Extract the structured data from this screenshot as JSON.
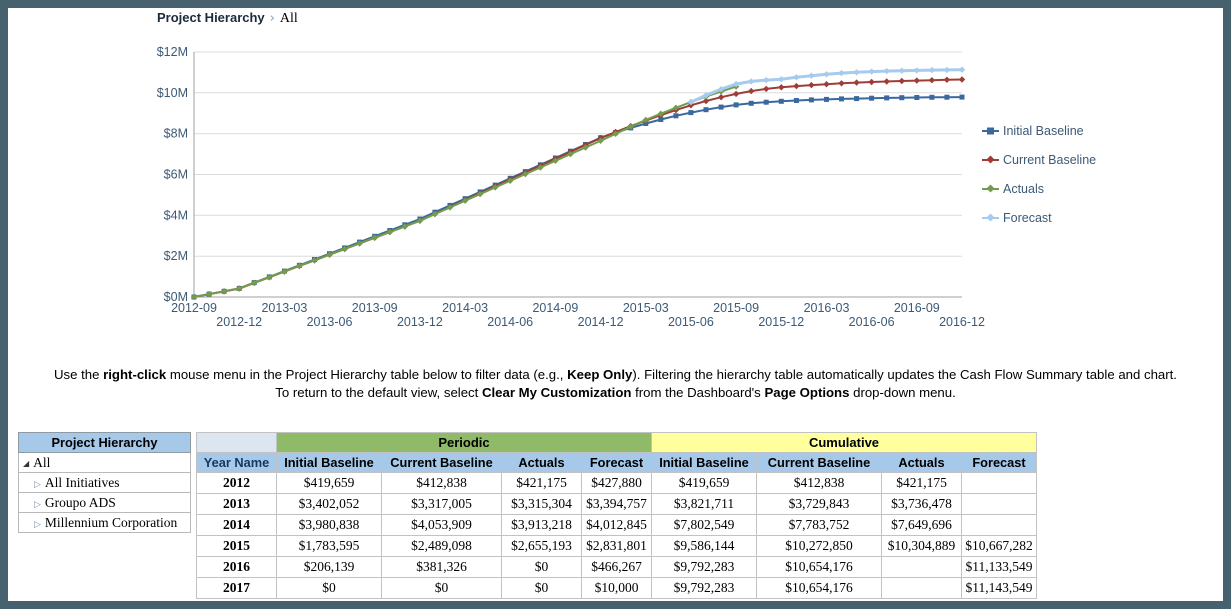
{
  "frame": {
    "border_color": "#48616f"
  },
  "breadcrumb": {
    "title": "Project Hierarchy",
    "separator": "›",
    "current": "All"
  },
  "chart_data": {
    "type": "line",
    "title": "",
    "xlabel": "",
    "ylabel": "",
    "ylim": [
      0,
      12000000
    ],
    "grid": "horizontal",
    "legend_position": "right",
    "ytick_labels": [
      "$0M",
      "$2M",
      "$4M",
      "$6M",
      "$8M",
      "$10M",
      "$12M"
    ],
    "x": [
      "2012-09",
      "2012-10",
      "2012-11",
      "2012-12",
      "2013-01",
      "2013-02",
      "2013-03",
      "2013-04",
      "2013-05",
      "2013-06",
      "2013-07",
      "2013-08",
      "2013-09",
      "2013-10",
      "2013-11",
      "2013-12",
      "2014-01",
      "2014-02",
      "2014-03",
      "2014-04",
      "2014-05",
      "2014-06",
      "2014-07",
      "2014-08",
      "2014-09",
      "2014-10",
      "2014-11",
      "2014-12",
      "2015-01",
      "2015-02",
      "2015-03",
      "2015-04",
      "2015-05",
      "2015-06",
      "2015-07",
      "2015-08",
      "2015-09",
      "2015-10",
      "2015-11",
      "2015-12",
      "2016-01",
      "2016-02",
      "2016-03",
      "2016-04",
      "2016-05",
      "2016-06",
      "2016-07",
      "2016-08",
      "2016-09",
      "2016-10",
      "2016-11",
      "2016-12"
    ],
    "series": [
      {
        "name": "Initial Baseline",
        "color": "#3a689f",
        "marker": "square",
        "values": [
          0,
          140000,
          280000,
          419659,
          703163,
          986668,
          1270172,
          1553676,
          1837181,
          2120685,
          2404189,
          2687694,
          2971198,
          3254702,
          3538207,
          3821711,
          4153448,
          4485184,
          4816921,
          5148657,
          5480394,
          5812130,
          6143867,
          6475603,
          6807340,
          7139076,
          7470813,
          7802549,
          8052252,
          8284120,
          8498151,
          8694347,
          8872706,
          9033229,
          9175917,
          9300769,
          9407785,
          9488046,
          9541554,
          9586144,
          9625000,
          9655000,
          9680000,
          9702000,
          9720000,
          9736000,
          9750000,
          9762000,
          9772000,
          9780000,
          9787000,
          9792283
        ]
      },
      {
        "name": "Current Baseline",
        "color": "#9e3d36",
        "marker": "diamond",
        "values": [
          0,
          137613,
          275225,
          412838,
          689255,
          965672,
          1242089,
          1518506,
          1794924,
          2071341,
          2347758,
          2624175,
          2900592,
          3177009,
          3453426,
          3729843,
          4067669,
          4405495,
          4743321,
          5081146,
          5418972,
          5756798,
          6094624,
          6432450,
          6770276,
          7108101,
          7445927,
          7783752,
          8082444,
          8368690,
          8642491,
          8903846,
          9152756,
          9389220,
          9600793,
          9787476,
          9949268,
          10086168,
          10190708,
          10272850,
          10330000,
          10380000,
          10425000,
          10465000,
          10500000,
          10530000,
          10556000,
          10578000,
          10600000,
          10620000,
          10638000,
          10654176
        ]
      },
      {
        "name": "Actuals",
        "color": "#739c4c",
        "marker": "diamond",
        "values": [
          0,
          140392,
          280783,
          421175,
          697450,
          973726,
          1250001,
          1526276,
          1802552,
          2078827,
          2355102,
          2631378,
          2907653,
          3183928,
          3460203,
          3736478,
          4062580,
          4388681,
          4714783,
          5040884,
          5366986,
          5693088,
          6019189,
          6345291,
          6671392,
          6997494,
          7323595,
          7649696,
          7994871,
          8340046,
          8671945,
          8977293,
          9269364,
          9548159,
          9813678,
          10065922,
          10304889,
          null,
          null,
          null,
          null,
          null,
          null,
          null,
          null,
          null,
          null,
          null,
          null,
          null,
          null,
          null
        ]
      },
      {
        "name": "Forecast",
        "color": "#a5cbee",
        "marker": "diamond",
        "values": [
          null,
          null,
          null,
          null,
          null,
          null,
          null,
          null,
          null,
          null,
          null,
          null,
          null,
          null,
          null,
          null,
          null,
          null,
          null,
          null,
          null,
          null,
          null,
          null,
          null,
          null,
          null,
          null,
          null,
          null,
          null,
          null,
          null,
          9548159,
          9880000,
          10180000,
          10430000,
          10560000,
          10625000,
          10667282,
          10760000,
          10840000,
          10910000,
          10965000,
          11005000,
          11040000,
          11065000,
          11085000,
          11100000,
          11113000,
          11124000,
          11133549
        ]
      }
    ]
  },
  "instructions": {
    "lines": [
      [
        {
          "t": "Use the ",
          "b": false
        },
        {
          "t": "right-click",
          "b": true
        },
        {
          "t": " mouse menu in the Project Hierarchy table below to filter data (e.g., ",
          "b": false
        },
        {
          "t": "Keep Only",
          "b": true
        },
        {
          "t": "). Filtering the hierarchy table automatically updates the Cash Flow Summary table and chart.",
          "b": false
        }
      ],
      [
        {
          "t": "To return to the default view, select ",
          "b": false
        },
        {
          "t": "Clear My Customization",
          "b": true
        },
        {
          "t": " from the Dashboard's ",
          "b": false
        },
        {
          "t": "Page Options",
          "b": true
        },
        {
          "t": " drop-down menu.",
          "b": false
        }
      ]
    ]
  },
  "hierarchy_table": {
    "header": "Project Hierarchy",
    "root": "All",
    "collapse_icon": "◢",
    "expand_icon": "▷",
    "items": [
      "All Initiatives",
      "Groupo ADS",
      "Millennium Corporation"
    ]
  },
  "summary_table": {
    "group_headers": [
      "Periodic",
      "Cumulative"
    ],
    "col_headers": [
      "Year Name",
      "Initial Baseline",
      "Current Baseline",
      "Actuals",
      "Forecast",
      "Initial Baseline",
      "Current Baseline",
      "Actuals",
      "Forecast"
    ],
    "rows": [
      {
        "year": "2012",
        "periodic": [
          "$419,659",
          "$412,838",
          "$421,175",
          "$427,880"
        ],
        "cumulative": [
          "$419,659",
          "$412,838",
          "$421,175",
          ""
        ]
      },
      {
        "year": "2013",
        "periodic": [
          "$3,402,052",
          "$3,317,005",
          "$3,315,304",
          "$3,394,757"
        ],
        "cumulative": [
          "$3,821,711",
          "$3,729,843",
          "$3,736,478",
          ""
        ]
      },
      {
        "year": "2014",
        "periodic": [
          "$3,980,838",
          "$4,053,909",
          "$3,913,218",
          "$4,012,845"
        ],
        "cumulative": [
          "$7,802,549",
          "$7,783,752",
          "$7,649,696",
          ""
        ]
      },
      {
        "year": "2015",
        "periodic": [
          "$1,783,595",
          "$2,489,098",
          "$2,655,193",
          "$2,831,801"
        ],
        "cumulative": [
          "$9,586,144",
          "$10,272,850",
          "$10,304,889",
          "$10,667,282"
        ]
      },
      {
        "year": "2016",
        "periodic": [
          "$206,139",
          "$381,326",
          "$0",
          "$466,267"
        ],
        "cumulative": [
          "$9,792,283",
          "$10,654,176",
          "",
          "$11,133,549"
        ]
      },
      {
        "year": "2017",
        "periodic": [
          "$0",
          "$0",
          "$0",
          "$10,000"
        ],
        "cumulative": [
          "$9,792,283",
          "$10,654,176",
          "",
          "$11,143,549"
        ]
      }
    ]
  }
}
